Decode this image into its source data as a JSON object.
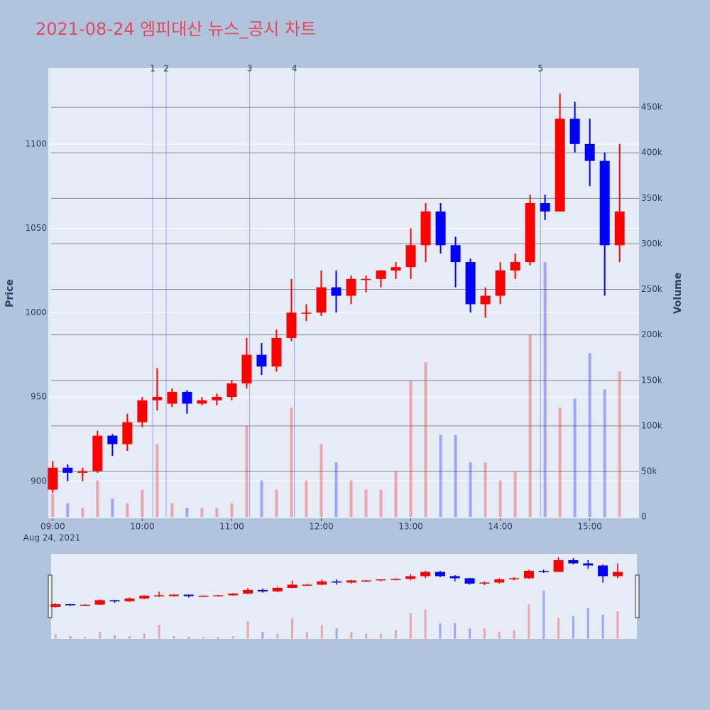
{
  "chart_data": {
    "type": "candlestick",
    "title": "2021-08-24 엠피대산 뉴스_공시 차트",
    "y_title": "Price",
    "y2_title": "Volume",
    "x_date_label": "Aug 24, 2021",
    "increasing_color": "#ff0000",
    "decreasing_color": "#0000ff",
    "x": [
      "09:00",
      "09:10",
      "09:20",
      "09:30",
      "09:40",
      "09:50",
      "10:00",
      "10:10",
      "10:20",
      "10:30",
      "10:40",
      "10:50",
      "11:00",
      "11:10",
      "11:20",
      "11:30",
      "11:40",
      "11:50",
      "12:00",
      "12:10",
      "12:20",
      "12:30",
      "12:40",
      "12:50",
      "13:00",
      "13:10",
      "13:20",
      "13:30",
      "13:40",
      "13:50",
      "14:00",
      "14:10",
      "14:20",
      "14:30",
      "14:40",
      "14:50",
      "15:00",
      "15:10",
      "15:20"
    ],
    "open": [
      895,
      908,
      905,
      906,
      927,
      922,
      935,
      948,
      946,
      953,
      946,
      948,
      950,
      958,
      975,
      968,
      985,
      1000,
      1000,
      1015,
      1010,
      1020,
      1020,
      1025,
      1027,
      1040,
      1060,
      1040,
      1030,
      1005,
      1010,
      1025,
      1030,
      1065,
      1060,
      1115,
      1100,
      1090,
      1040
    ],
    "high": [
      912,
      910,
      908,
      930,
      928,
      940,
      950,
      967,
      955,
      954,
      950,
      952,
      960,
      985,
      982,
      990,
      1020,
      1005,
      1025,
      1025,
      1022,
      1022,
      1025,
      1030,
      1050,
      1065,
      1065,
      1045,
      1032,
      1015,
      1030,
      1035,
      1070,
      1070,
      1130,
      1125,
      1115,
      1095,
      1100
    ],
    "low": [
      893,
      900,
      900,
      905,
      915,
      918,
      932,
      942,
      944,
      940,
      945,
      945,
      948,
      955,
      963,
      965,
      983,
      995,
      998,
      1000,
      1005,
      1012,
      1015,
      1020,
      1020,
      1030,
      1035,
      1015,
      1000,
      997,
      1005,
      1020,
      1028,
      1055,
      1060,
      1095,
      1075,
      1010,
      1030
    ],
    "close": [
      908,
      905,
      906,
      927,
      922,
      935,
      948,
      950,
      953,
      946,
      948,
      950,
      958,
      975,
      968,
      985,
      1000,
      1000,
      1015,
      1010,
      1020,
      1020,
      1025,
      1027,
      1040,
      1060,
      1040,
      1030,
      1005,
      1010,
      1025,
      1030,
      1065,
      1060,
      1115,
      1100,
      1090,
      1040,
      1060
    ],
    "volume": [
      25000,
      15000,
      10000,
      40000,
      20000,
      15000,
      30000,
      80000,
      15000,
      10000,
      10000,
      10000,
      15000,
      100000,
      40000,
      30000,
      120000,
      40000,
      80000,
      60000,
      40000,
      30000,
      30000,
      50000,
      150000,
      170000,
      90000,
      90000,
      60000,
      60000,
      40000,
      50000,
      200000,
      280000,
      120000,
      130000,
      180000,
      140000,
      160000
    ],
    "xlim": [
      "08:57",
      "15:33"
    ],
    "xticks": [
      "09:00",
      "10:00",
      "11:00",
      "12:00",
      "13:00",
      "14:00",
      "15:00"
    ],
    "ylim": [
      878,
      1145
    ],
    "yticks": [
      900,
      950,
      1000,
      1050,
      1100
    ],
    "y2lim": [
      -1500,
      493000
    ],
    "y2ticks": [
      0,
      {
        "value": 50000,
        "label": "50k"
      },
      {
        "value": 100000,
        "label": "100k"
      },
      {
        "value": 150000,
        "label": "150k"
      },
      {
        "value": 200000,
        "label": "200k"
      },
      {
        "value": 250000,
        "label": "250k"
      },
      {
        "value": 300000,
        "label": "300k"
      },
      {
        "value": 350000,
        "label": "350k"
      },
      {
        "value": 400000,
        "label": "400k"
      },
      {
        "value": 450000,
        "label": "450k"
      }
    ],
    "annotations": [
      {
        "x": "10:07",
        "label": "1"
      },
      {
        "x": "10:16",
        "label": "2"
      },
      {
        "x": "11:12",
        "label": "3"
      },
      {
        "x": "11:42",
        "label": "4"
      },
      {
        "x": "14:27",
        "label": "5"
      }
    ]
  }
}
